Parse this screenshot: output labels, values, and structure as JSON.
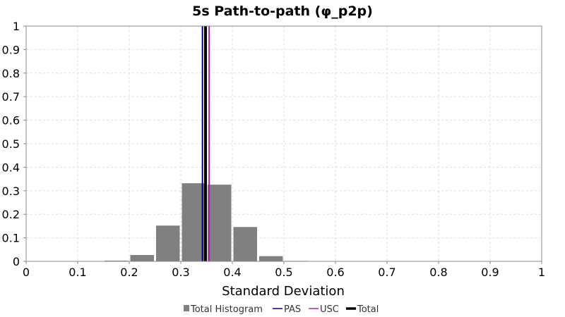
{
  "chart_data": {
    "type": "bar",
    "title": "5s Path-to-path (φ_p2p)",
    "xlabel": "Standard Deviation",
    "ylabel": "",
    "xlim": [
      0,
      1
    ],
    "ylim": [
      0,
      1
    ],
    "xticks": [
      "0",
      "0.1",
      "0.2",
      "0.3",
      "0.4",
      "0.5",
      "0.6",
      "0.7",
      "0.8",
      "0.9",
      "1"
    ],
    "yticks": [
      "0",
      "0.1",
      "0.2",
      "0.3",
      "0.4",
      "0.5",
      "0.6",
      "0.7",
      "0.8",
      "0.9",
      "1"
    ],
    "grid": true,
    "legend_position": "bottom",
    "histogram": {
      "name": "Total Histogram",
      "color": "#808080",
      "bins": [
        {
          "start": 0.15,
          "end": 0.2,
          "value": 0.003
        },
        {
          "start": 0.2,
          "end": 0.25,
          "value": 0.027
        },
        {
          "start": 0.25,
          "end": 0.3,
          "value": 0.152
        },
        {
          "start": 0.3,
          "end": 0.35,
          "value": 0.332
        },
        {
          "start": 0.35,
          "end": 0.4,
          "value": 0.326
        },
        {
          "start": 0.4,
          "end": 0.45,
          "value": 0.146
        },
        {
          "start": 0.45,
          "end": 0.5,
          "value": 0.022
        },
        {
          "start": 0.5,
          "end": 0.55,
          "value": 0.002
        }
      ]
    },
    "vertical_lines": [
      {
        "name": "PAS",
        "x": 0.342,
        "color": "#000080"
      },
      {
        "name": "USC",
        "x": 0.355,
        "color": "#aa22aa"
      },
      {
        "name": "Total",
        "x": 0.348,
        "color": "#000000"
      }
    ],
    "legend": [
      {
        "label": "Total Histogram",
        "kind": "box",
        "color": "#808080"
      },
      {
        "label": "PAS",
        "kind": "line",
        "color": "#000080"
      },
      {
        "label": "USC",
        "kind": "line",
        "color": "#aa22aa"
      },
      {
        "label": "Total",
        "kind": "line",
        "color": "#000000"
      }
    ]
  }
}
